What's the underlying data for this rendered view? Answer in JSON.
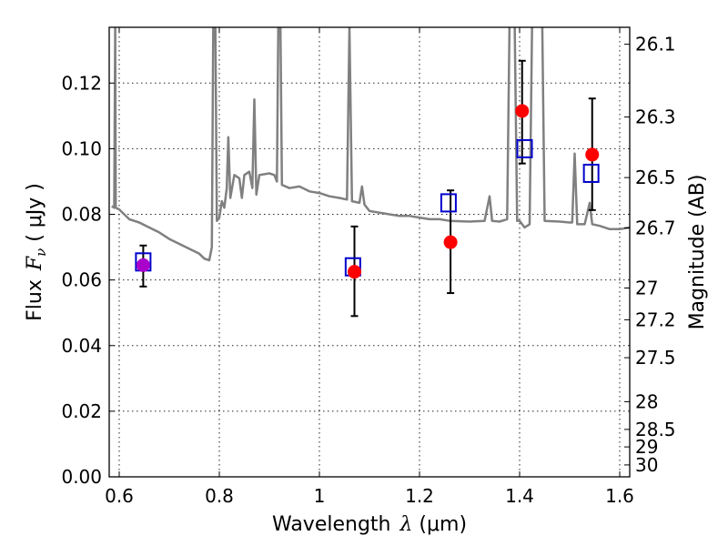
{
  "chart_data": {
    "type": "scatter",
    "x_axis": {
      "label_main": "Wavelength",
      "label_symbol": "λ",
      "label_unit": " (μm)",
      "range": [
        0.58,
        1.62
      ],
      "ticks": [
        0.6,
        0.8,
        1.0,
        1.2,
        1.4,
        1.6
      ],
      "tick_labels": [
        "0.6",
        "0.8",
        "1",
        "1.2",
        "1.4",
        "1.6"
      ]
    },
    "y_axis": {
      "label_main": "Flux",
      "label_symbol": "F",
      "label_sub": "ν",
      "label_unit": " ( μJy )",
      "range": [
        0.0,
        0.137
      ],
      "ticks": [
        0.0,
        0.02,
        0.04,
        0.06,
        0.08,
        0.1,
        0.12
      ],
      "tick_labels": [
        "0.00",
        "0.02",
        "0.04",
        "0.06",
        "0.08",
        "0.10",
        "0.12"
      ]
    },
    "y2_axis": {
      "label": "Magnitude (AB)",
      "ticks": [
        26.1,
        26.3,
        26.5,
        26.7,
        27.0,
        27.2,
        27.5,
        28.0,
        28.5,
        29.0,
        30.0
      ],
      "tick_labels": [
        "26.1",
        "26.3",
        "26.5",
        "26.7",
        "27",
        "27.2",
        "27.5",
        "28",
        "28.5",
        "29",
        "30"
      ]
    },
    "grid": true,
    "series": [
      {
        "kind": "model_spectrum",
        "color": "#808080",
        "points": [
          [
            0.585,
            0.0825
          ],
          [
            0.59,
            0.082
          ],
          [
            0.592,
            0.137
          ],
          [
            0.593,
            0.082
          ],
          [
            0.6,
            0.0815
          ],
          [
            0.61,
            0.08
          ],
          [
            0.62,
            0.0785
          ],
          [
            0.64,
            0.0775
          ],
          [
            0.66,
            0.076
          ],
          [
            0.68,
            0.0745
          ],
          [
            0.7,
            0.0725
          ],
          [
            0.72,
            0.071
          ],
          [
            0.74,
            0.0695
          ],
          [
            0.76,
            0.068
          ],
          [
            0.77,
            0.0665
          ],
          [
            0.78,
            0.066
          ],
          [
            0.785,
            0.07
          ],
          [
            0.788,
            0.14
          ],
          [
            0.792,
            0.14
          ],
          [
            0.795,
            0.078
          ],
          [
            0.8,
            0.079
          ],
          [
            0.805,
            0.084
          ],
          [
            0.81,
            0.082
          ],
          [
            0.815,
            0.088
          ],
          [
            0.818,
            0.1035
          ],
          [
            0.822,
            0.085
          ],
          [
            0.83,
            0.092
          ],
          [
            0.84,
            0.091
          ],
          [
            0.845,
            0.085
          ],
          [
            0.85,
            0.092
          ],
          [
            0.86,
            0.093
          ],
          [
            0.866,
            0.088
          ],
          [
            0.87,
            0.115
          ],
          [
            0.874,
            0.086
          ],
          [
            0.88,
            0.092
          ],
          [
            0.9,
            0.0925
          ],
          [
            0.91,
            0.092
          ],
          [
            0.915,
            0.09
          ],
          [
            0.918,
            0.14
          ],
          [
            0.922,
            0.14
          ],
          [
            0.925,
            0.089
          ],
          [
            0.94,
            0.088
          ],
          [
            0.96,
            0.0885
          ],
          [
            0.98,
            0.087
          ],
          [
            1.0,
            0.0865
          ],
          [
            1.02,
            0.0855
          ],
          [
            1.04,
            0.085
          ],
          [
            1.055,
            0.0845
          ],
          [
            1.06,
            0.137
          ],
          [
            1.065,
            0.084
          ],
          [
            1.08,
            0.0835
          ],
          [
            1.085,
            0.0885
          ],
          [
            1.09,
            0.083
          ],
          [
            1.1,
            0.081
          ],
          [
            1.12,
            0.0805
          ],
          [
            1.14,
            0.08
          ],
          [
            1.16,
            0.0795
          ],
          [
            1.18,
            0.0795
          ],
          [
            1.2,
            0.079
          ],
          [
            1.22,
            0.0785
          ],
          [
            1.24,
            0.0785
          ],
          [
            1.26,
            0.078
          ],
          [
            1.3,
            0.0778
          ],
          [
            1.33,
            0.078
          ],
          [
            1.34,
            0.0855
          ],
          [
            1.345,
            0.078
          ],
          [
            1.36,
            0.0778
          ],
          [
            1.375,
            0.0785
          ],
          [
            1.38,
            0.14
          ],
          [
            1.39,
            0.14
          ],
          [
            1.395,
            0.078
          ],
          [
            1.4,
            0.078
          ],
          [
            1.41,
            0.076
          ],
          [
            1.42,
            0.077
          ],
          [
            1.425,
            0.14
          ],
          [
            1.445,
            0.14
          ],
          [
            1.45,
            0.078
          ],
          [
            1.48,
            0.0778
          ],
          [
            1.5,
            0.0775
          ],
          [
            1.505,
            0.0775
          ],
          [
            1.51,
            0.0985
          ],
          [
            1.515,
            0.077
          ],
          [
            1.52,
            0.077
          ],
          [
            1.53,
            0.077
          ],
          [
            1.54,
            0.0835
          ],
          [
            1.545,
            0.077
          ],
          [
            1.56,
            0.0765
          ],
          [
            1.58,
            0.0755
          ],
          [
            1.6,
            0.0755
          ],
          [
            1.62,
            0.076
          ]
        ]
      },
      {
        "kind": "observed",
        "marker": "circle",
        "points": [
          {
            "x": 0.648,
            "y": 0.0645,
            "yerr_low": 0.058,
            "yerr_high": 0.0705,
            "color": "#aa00cc"
          },
          {
            "x": 1.07,
            "y": 0.0625,
            "yerr_low": 0.049,
            "yerr_high": 0.0763,
            "color": "#ff0000"
          },
          {
            "x": 1.262,
            "y": 0.0715,
            "yerr_low": 0.056,
            "yerr_high": 0.0873,
            "color": "#ff0000"
          },
          {
            "x": 1.405,
            "y": 0.1115,
            "yerr_low": 0.0955,
            "yerr_high": 0.1268,
            "color": "#ff0000"
          },
          {
            "x": 1.545,
            "y": 0.0982,
            "yerr_low": 0.0813,
            "yerr_high": 0.1153,
            "color": "#ff0000"
          }
        ]
      },
      {
        "kind": "model_photometry",
        "marker": "open-square",
        "color": "#0000cc",
        "points": [
          {
            "x": 0.648,
            "y": 0.0655
          },
          {
            "x": 1.067,
            "y": 0.064
          },
          {
            "x": 1.258,
            "y": 0.0835
          },
          {
            "x": 1.41,
            "y": 0.1
          },
          {
            "x": 1.543,
            "y": 0.0925
          }
        ]
      }
    ]
  }
}
